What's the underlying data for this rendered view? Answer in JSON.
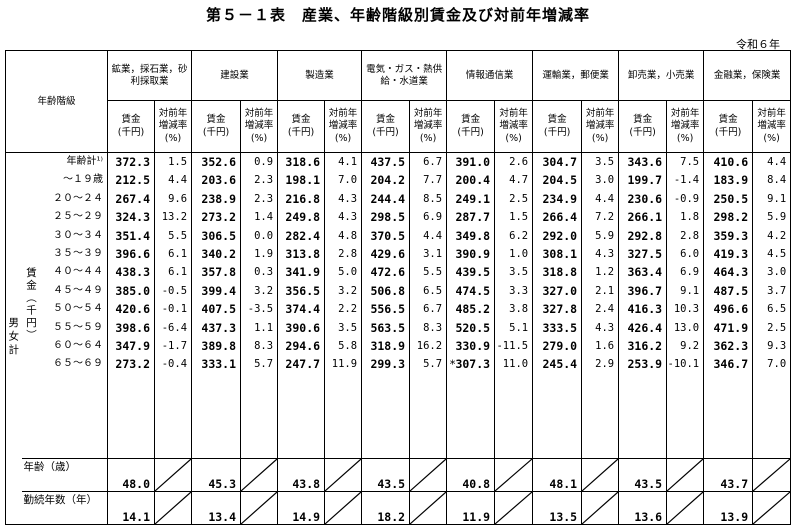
{
  "title": "第５－１表　産業、年齢階級別賃金及び対前年増減率",
  "era": "令和６年",
  "header": {
    "age_class": "年齢階級",
    "wage_label": "賃金\n(千円)",
    "change_label": "対前年\n増減率\n(%)",
    "industries": [
      "鉱業，採石業，砂利採取業",
      "建設業",
      "製造業",
      "電気・ガス・熱供給・水道業",
      "情報通信業",
      "運輸業，郵便業",
      "卸売業，小売業",
      "金融業，保険業"
    ]
  },
  "side": {
    "sex": "男女計",
    "wage_unit": "賃金（千円）"
  },
  "age_labels": [
    "年齢計¹⁾",
    "～１９歳",
    "２０～２４",
    "２５～２９",
    "３０～３４",
    "３５～３９",
    "４０～４４",
    "４５～４９",
    "５０～５４",
    "５５～５９",
    "６０～６４",
    "６５～６９"
  ],
  "data": [
    {
      "wages": [
        "372.3",
        "212.5",
        "267.4",
        "324.3",
        "351.4",
        "396.6",
        "438.3",
        "385.0",
        "420.6",
        "398.6",
        "347.9",
        "273.2"
      ],
      "changes": [
        "1.5",
        "4.4",
        "9.6",
        "13.2",
        "5.5",
        "6.1",
        "6.1",
        "-0.5",
        "-0.1",
        "-6.4",
        "-1.7",
        "-0.4"
      ],
      "age": "48.0",
      "tenure": "14.1"
    },
    {
      "wages": [
        "352.6",
        "203.6",
        "238.9",
        "273.2",
        "306.5",
        "340.2",
        "357.8",
        "399.4",
        "407.5",
        "437.3",
        "389.8",
        "333.1"
      ],
      "changes": [
        "0.9",
        "2.3",
        "2.3",
        "1.4",
        "0.0",
        "1.9",
        "0.3",
        "3.2",
        "-3.5",
        "1.1",
        "8.3",
        "5.7"
      ],
      "age": "45.3",
      "tenure": "13.4"
    },
    {
      "wages": [
        "318.6",
        "198.1",
        "216.8",
        "249.8",
        "282.4",
        "313.8",
        "341.9",
        "356.5",
        "374.4",
        "390.6",
        "294.6",
        "247.7"
      ],
      "changes": [
        "4.1",
        "7.0",
        "4.3",
        "4.3",
        "4.8",
        "2.8",
        "5.0",
        "3.2",
        "2.2",
        "3.5",
        "5.8",
        "11.9"
      ],
      "age": "43.8",
      "tenure": "14.9"
    },
    {
      "wages": [
        "437.5",
        "204.2",
        "244.4",
        "298.5",
        "370.5",
        "429.6",
        "472.6",
        "506.8",
        "556.5",
        "563.5",
        "318.9",
        "299.3"
      ],
      "changes": [
        "6.7",
        "7.7",
        "8.5",
        "6.9",
        "4.4",
        "3.1",
        "5.5",
        "6.5",
        "6.7",
        "8.3",
        "16.2",
        "5.7"
      ],
      "age": "43.5",
      "tenure": "18.2"
    },
    {
      "wages": [
        "391.0",
        "200.4",
        "249.1",
        "287.7",
        "349.8",
        "390.9",
        "439.5",
        "474.5",
        "485.2",
        "520.5",
        "330.9",
        "307.3"
      ],
      "changes": [
        "2.6",
        "4.7",
        "2.5",
        "1.5",
        "6.2",
        "1.0",
        "3.5",
        "3.3",
        "3.8",
        "5.1",
        "-11.5",
        "11.0"
      ],
      "age": "40.8",
      "tenure": "11.9",
      "star": "*"
    },
    {
      "wages": [
        "304.7",
        "204.5",
        "234.9",
        "266.4",
        "292.0",
        "308.1",
        "318.8",
        "327.0",
        "327.8",
        "333.5",
        "279.0",
        "245.4"
      ],
      "changes": [
        "3.5",
        "3.0",
        "4.4",
        "7.2",
        "5.9",
        "4.3",
        "1.2",
        "2.1",
        "2.4",
        "4.3",
        "1.6",
        "2.9"
      ],
      "age": "48.1",
      "tenure": "13.5"
    },
    {
      "wages": [
        "343.6",
        "199.7",
        "230.6",
        "266.1",
        "292.8",
        "327.5",
        "363.4",
        "396.7",
        "416.3",
        "426.4",
        "316.2",
        "253.9"
      ],
      "changes": [
        "7.5",
        "-1.4",
        "-0.9",
        "1.8",
        "2.8",
        "6.0",
        "6.9",
        "9.1",
        "10.3",
        "13.0",
        "9.2",
        "-10.1"
      ],
      "age": "43.5",
      "tenure": "13.6"
    },
    {
      "wages": [
        "410.6",
        "183.9",
        "250.5",
        "298.2",
        "359.3",
        "419.3",
        "464.3",
        "487.5",
        "496.6",
        "471.9",
        "362.3",
        "346.7"
      ],
      "changes": [
        "4.4",
        "8.4",
        "9.1",
        "5.9",
        "4.2",
        "4.5",
        "3.0",
        "3.7",
        "6.5",
        "2.5",
        "9.3",
        "7.0"
      ],
      "age": "43.7",
      "tenure": "13.9"
    }
  ],
  "footer": {
    "age_label": "年齢（歳）",
    "tenure_label": "勤続年数（年）"
  }
}
